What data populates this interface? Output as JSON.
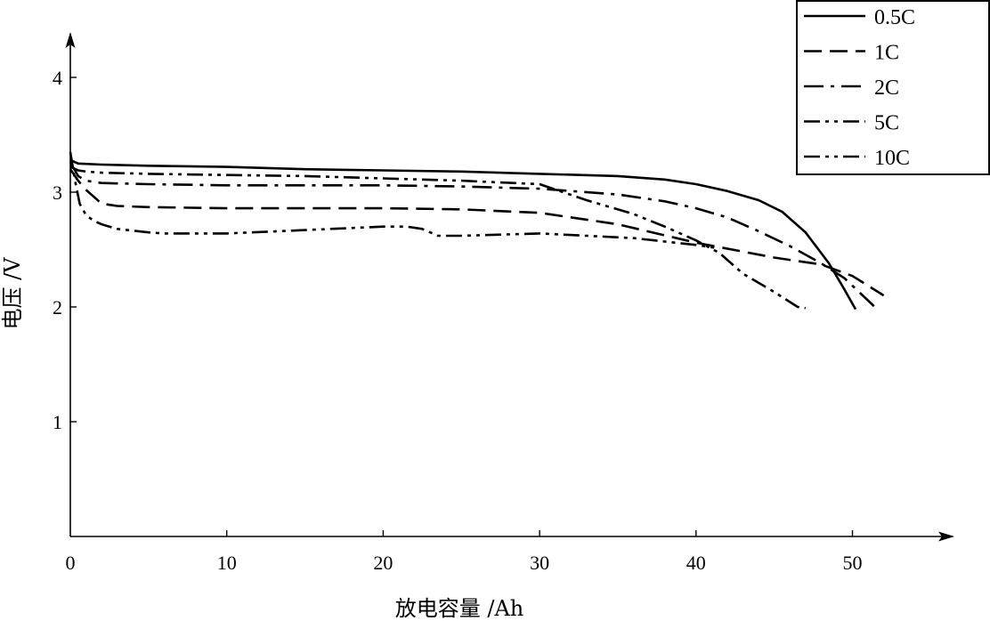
{
  "chart_data": {
    "type": "line",
    "title": "",
    "xlabel": "放电容量 /Ah",
    "ylabel": "电压 /V",
    "xlim": [
      0,
      55
    ],
    "ylim": [
      0,
      4.4
    ],
    "xticks": [
      0,
      10,
      20,
      30,
      40,
      50
    ],
    "yticks": [
      1,
      2,
      3,
      4
    ],
    "grid": false,
    "legend_position": "top-right",
    "series": [
      {
        "name": "0.5C",
        "dash": "solid",
        "x": [
          0,
          0.5,
          2,
          5,
          10,
          15,
          20,
          25,
          30,
          35,
          38,
          40,
          42,
          44,
          45.5,
          47,
          48.5,
          49.5,
          50.2
        ],
        "y": [
          3.28,
          3.25,
          3.24,
          3.23,
          3.22,
          3.2,
          3.19,
          3.18,
          3.16,
          3.14,
          3.11,
          3.07,
          3.01,
          2.93,
          2.83,
          2.65,
          2.38,
          2.15,
          1.98
        ]
      },
      {
        "name": "1C",
        "dash": "dash",
        "x": [
          0,
          0.5,
          1,
          2,
          3,
          5,
          10,
          15,
          20,
          25,
          30,
          35,
          40,
          45,
          48,
          50,
          52
        ],
        "y": [
          3.2,
          3.1,
          3.02,
          2.9,
          2.88,
          2.87,
          2.86,
          2.86,
          2.86,
          2.85,
          2.82,
          2.72,
          2.56,
          2.43,
          2.37,
          2.27,
          2.1
        ]
      },
      {
        "name": "2C",
        "dash": "dashdot",
        "x": [
          0,
          0.5,
          1,
          2,
          5,
          10,
          15,
          20,
          25,
          30,
          35,
          38,
          40,
          42,
          44,
          46,
          48,
          49.5,
          50.5,
          51.5
        ],
        "y": [
          3.26,
          3.14,
          3.1,
          3.08,
          3.07,
          3.06,
          3.06,
          3.06,
          3.05,
          3.03,
          2.98,
          2.92,
          2.86,
          2.78,
          2.66,
          2.53,
          2.38,
          2.25,
          2.12,
          1.99
        ]
      },
      {
        "name": "5C",
        "dash": "dashdotdot",
        "x": [
          0,
          0.5,
          1,
          2,
          5,
          10,
          15,
          20,
          25,
          30,
          33,
          36,
          38,
          40,
          41.5,
          43,
          45,
          46.5,
          47
        ],
        "y": [
          3.22,
          3.19,
          3.18,
          3.17,
          3.16,
          3.15,
          3.14,
          3.12,
          3.1,
          3.07,
          2.93,
          2.81,
          2.7,
          2.58,
          2.47,
          2.29,
          2.13,
          2.0,
          1.99
        ]
      },
      {
        "name": "10C",
        "dash": "dashdotdot",
        "x": [
          0,
          0.3,
          0.6,
          1,
          1.5,
          2,
          3,
          5,
          6,
          10,
          15,
          20,
          21.5,
          22.5,
          23.5,
          25,
          30,
          33,
          36,
          38,
          40,
          41.5
        ],
        "y": [
          3.35,
          3.1,
          2.9,
          2.8,
          2.75,
          2.72,
          2.68,
          2.65,
          2.64,
          2.64,
          2.67,
          2.7,
          2.7,
          2.68,
          2.62,
          2.62,
          2.64,
          2.62,
          2.6,
          2.57,
          2.54,
          2.51
        ]
      }
    ]
  }
}
